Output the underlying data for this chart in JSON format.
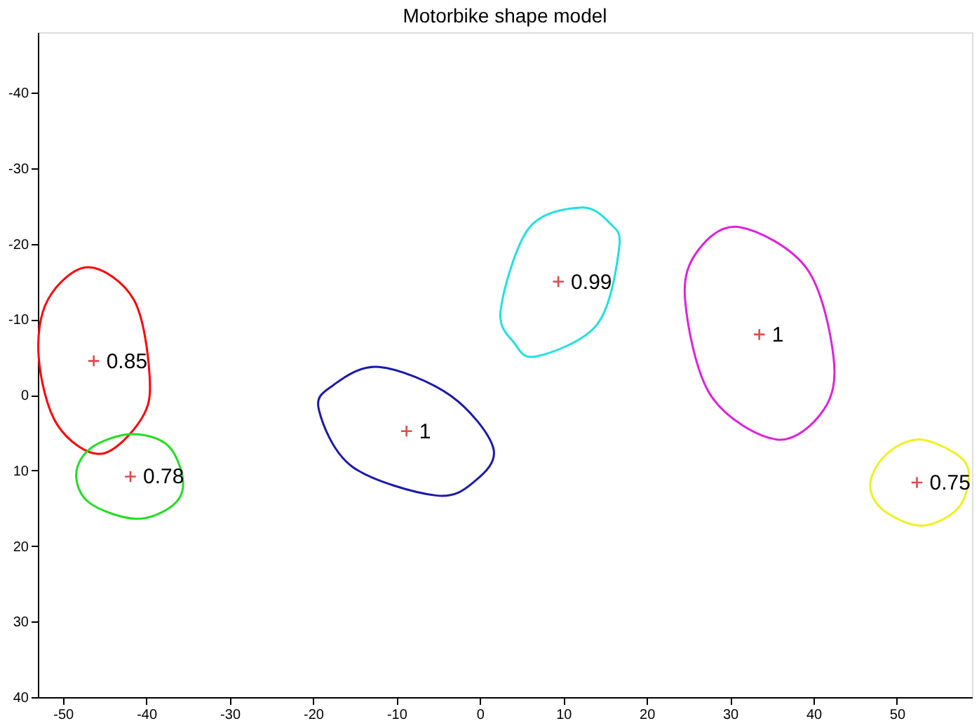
{
  "chart_data": {
    "type": "scatter",
    "title": "Motorbike shape model",
    "xlim": [
      -53,
      59
    ],
    "ylim": [
      40,
      -48
    ],
    "xticks": [
      -50,
      -40,
      -30,
      -20,
      -10,
      0,
      10,
      20,
      30,
      40,
      50
    ],
    "yticks": [
      -40,
      -30,
      -20,
      -10,
      0,
      10,
      20,
      30,
      40
    ],
    "grid": false,
    "marker": "cross",
    "series": [
      {
        "color": "#cc0000",
        "x": [
          -46.3,
          -41.9,
          -8.8,
          9.4,
          33.5,
          52.4
        ],
        "values": [
          -4.5,
          10.8,
          4.8,
          -15.0,
          -8.0,
          11.6
        ]
      }
    ],
    "annotations": [
      {
        "text": "0.85",
        "x": -46.3,
        "y": -4.5
      },
      {
        "text": "0.78",
        "x": -41.9,
        "y": 10.8
      },
      {
        "text": "1",
        "x": -8.8,
        "y": 4.8
      },
      {
        "text": "0.99",
        "x": 9.4,
        "y": -15.0
      },
      {
        "text": "1",
        "x": 33.5,
        "y": -8.0
      },
      {
        "text": "0.75",
        "x": 52.4,
        "y": 11.6
      }
    ]
  }
}
